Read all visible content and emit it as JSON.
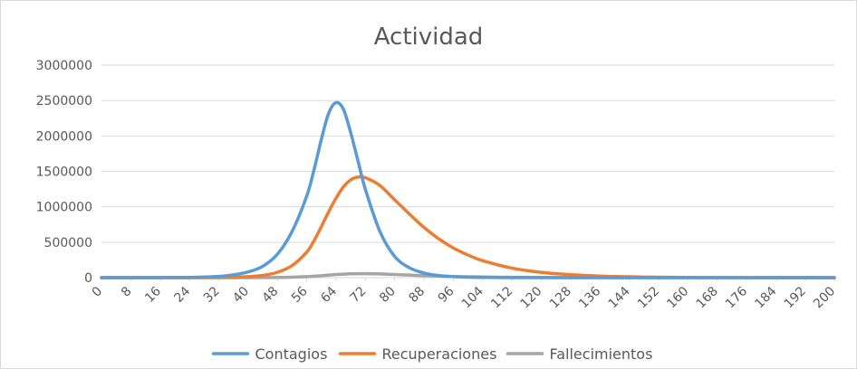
{
  "chart_data": {
    "type": "line",
    "title": "Actividad",
    "xlabel": "",
    "ylabel": "",
    "xlim": [
      0,
      200
    ],
    "ylim": [
      0,
      3000000
    ],
    "y_ticks": [
      0,
      500000,
      1000000,
      1500000,
      2000000,
      2500000,
      3000000
    ],
    "x_ticks": [
      0,
      8,
      16,
      24,
      32,
      40,
      48,
      56,
      64,
      72,
      80,
      88,
      96,
      104,
      112,
      120,
      128,
      136,
      144,
      152,
      160,
      168,
      176,
      184,
      192,
      200
    ],
    "grid": true,
    "legend_position": "bottom",
    "x": [
      0,
      8,
      16,
      24,
      32,
      36,
      40,
      44,
      48,
      52,
      56,
      58,
      60,
      62,
      64,
      66,
      68,
      70,
      72,
      76,
      80,
      84,
      88,
      92,
      96,
      100,
      104,
      112,
      120,
      128,
      136,
      144,
      152,
      160,
      168,
      176,
      184,
      192,
      200
    ],
    "series": [
      {
        "name": "Contagios",
        "color": "#5b9bd5",
        "values": [
          0,
          0,
          500,
          4000,
          18000,
          40000,
          80000,
          160000,
          330000,
          650000,
          1150000,
          1520000,
          1950000,
          2320000,
          2470000,
          2380000,
          2050000,
          1650000,
          1250000,
          650000,
          300000,
          140000,
          65000,
          30000,
          14000,
          6000,
          3000,
          600,
          100,
          0,
          0,
          0,
          0,
          0,
          0,
          0,
          0,
          0,
          0
        ]
      },
      {
        "name": "Recuperaciones",
        "color": "#ed7d31",
        "values": [
          0,
          0,
          0,
          500,
          2500,
          6000,
          14000,
          32000,
          75000,
          170000,
          360000,
          520000,
          720000,
          930000,
          1120000,
          1280000,
          1380000,
          1420000,
          1410000,
          1300000,
          1100000,
          900000,
          710000,
          550000,
          420000,
          320000,
          240000,
          135000,
          75000,
          42000,
          23000,
          12000,
          6000,
          3000,
          1500,
          700,
          300,
          100,
          0
        ]
      },
      {
        "name": "Fallecimientos",
        "color": "#a5a5a5",
        "values": [
          0,
          0,
          0,
          0,
          100,
          250,
          600,
          1400,
          3000,
          7000,
          15000,
          20000,
          28000,
          36000,
          44000,
          50000,
          54000,
          56000,
          56000,
          52000,
          45000,
          36000,
          28000,
          22000,
          17000,
          13000,
          10000,
          5500,
          3000,
          1700,
          900,
          500,
          250,
          120,
          60,
          30,
          10,
          0,
          0
        ]
      }
    ]
  }
}
